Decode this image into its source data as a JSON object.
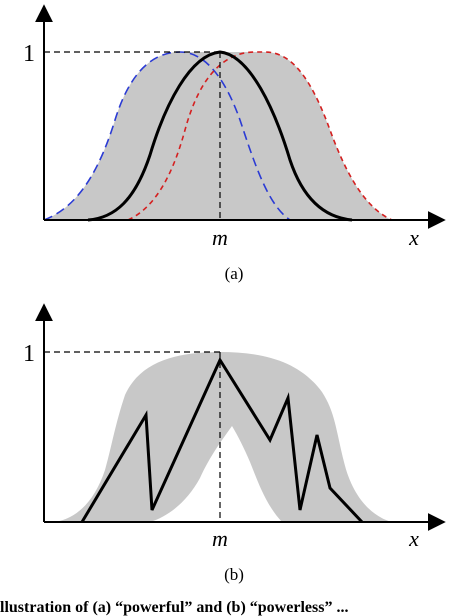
{
  "panel_a": {
    "caption": "(a)",
    "y_tick": "1",
    "x_tick": "m",
    "x_axis_label": "x"
  },
  "panel_b": {
    "caption": "(b)",
    "y_tick": "1",
    "x_tick": "m",
    "x_axis_label": "x"
  },
  "bottom_text": "llustration of (a) “powerful” and (b) “powerless” ...",
  "colors": {
    "band": "#c8c8c8",
    "main_curve": "#000000",
    "left_bound": "#2b3bd4",
    "right_bound": "#d42020",
    "axis": "#000000"
  }
}
